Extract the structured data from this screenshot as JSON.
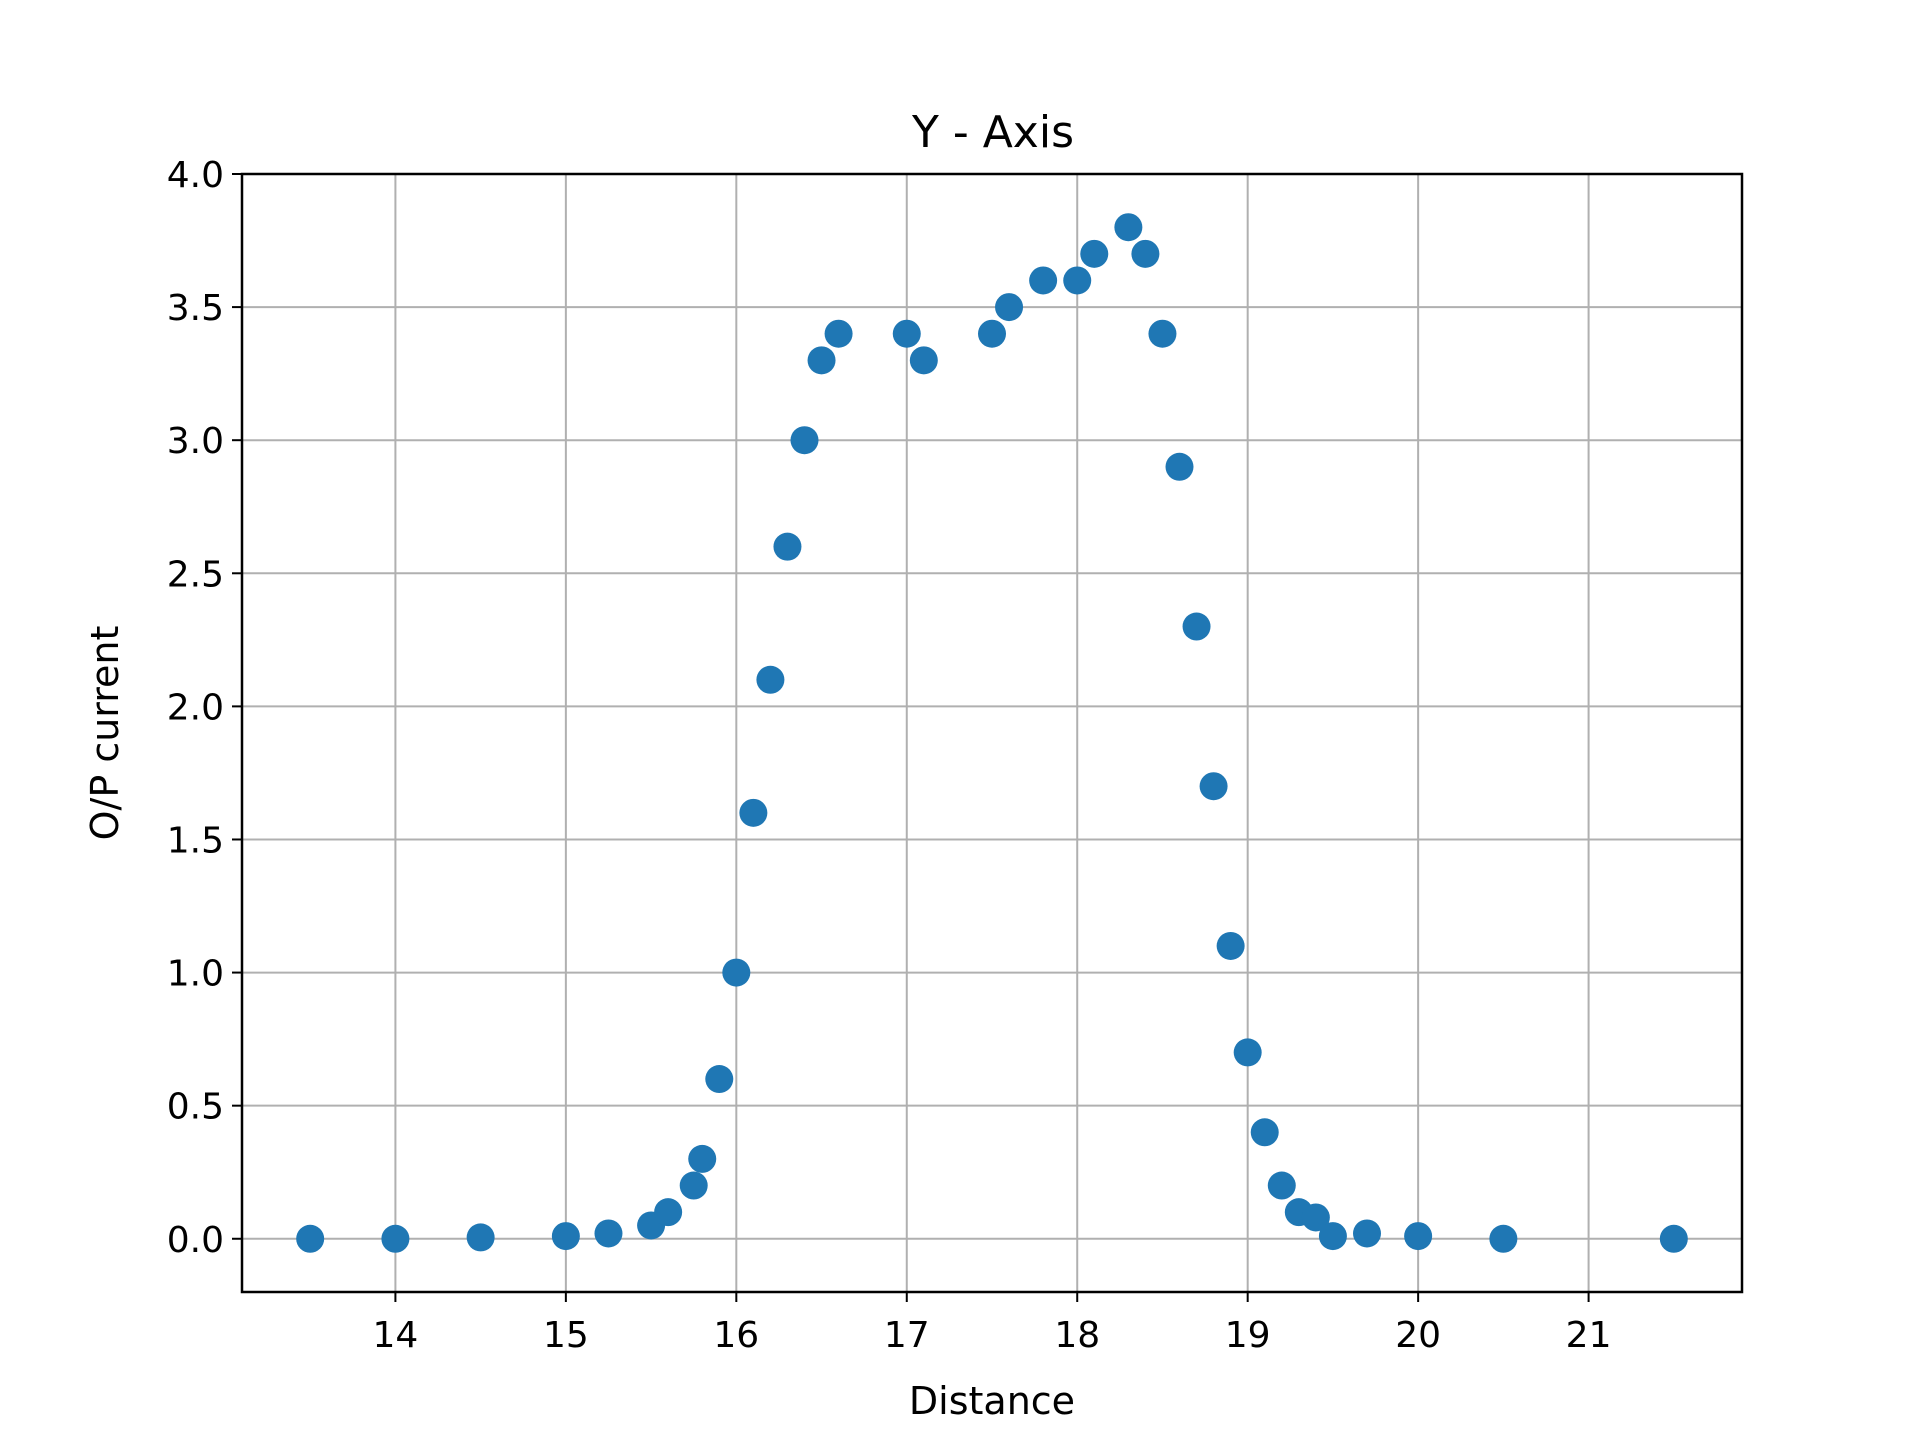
{
  "chart_data": {
    "type": "scatter",
    "title": "Y - Axis",
    "xlabel": "Distance",
    "ylabel": "O/P current",
    "xlim": [
      13.1,
      21.9
    ],
    "ylim": [
      -0.2,
      4.0
    ],
    "xticks": [
      14,
      15,
      16,
      17,
      18,
      19,
      20,
      21
    ],
    "xtick_labels": [
      "14",
      "15",
      "16",
      "17",
      "18",
      "19",
      "20",
      "21"
    ],
    "yticks": [
      0.0,
      0.5,
      1.0,
      1.5,
      2.0,
      2.5,
      3.0,
      3.5,
      4.0
    ],
    "ytick_labels": [
      "0.0",
      "0.5",
      "1.0",
      "1.5",
      "2.0",
      "2.5",
      "3.0",
      "3.5",
      "4.0"
    ],
    "grid": true,
    "marker_color": "#1f77b4",
    "series": [
      {
        "x": [
          13.5,
          14.0,
          14.5,
          15.0,
          15.25,
          15.5,
          15.6,
          15.75,
          15.8,
          15.9,
          16.0,
          16.1,
          16.2,
          16.3,
          16.4,
          16.5,
          16.6,
          17.0,
          17.1,
          17.5,
          17.6,
          17.8,
          18.0,
          18.1,
          18.3,
          18.4,
          18.5,
          18.6,
          18.7,
          18.8,
          18.9,
          19.0,
          19.1,
          19.2,
          19.3,
          19.4,
          19.5,
          19.7,
          20.0,
          20.5,
          21.5
        ],
        "y": [
          0.0,
          0.0,
          0.005,
          0.01,
          0.02,
          0.05,
          0.1,
          0.2,
          0.3,
          0.6,
          1.0,
          1.6,
          2.1,
          2.6,
          3.0,
          3.3,
          3.4,
          3.4,
          3.3,
          3.4,
          3.5,
          3.6,
          3.6,
          3.7,
          3.8,
          3.7,
          3.4,
          2.9,
          2.3,
          1.7,
          1.1,
          0.7,
          0.4,
          0.2,
          0.1,
          0.08,
          0.01,
          0.02,
          0.01,
          0.0,
          0.0
        ]
      }
    ]
  }
}
